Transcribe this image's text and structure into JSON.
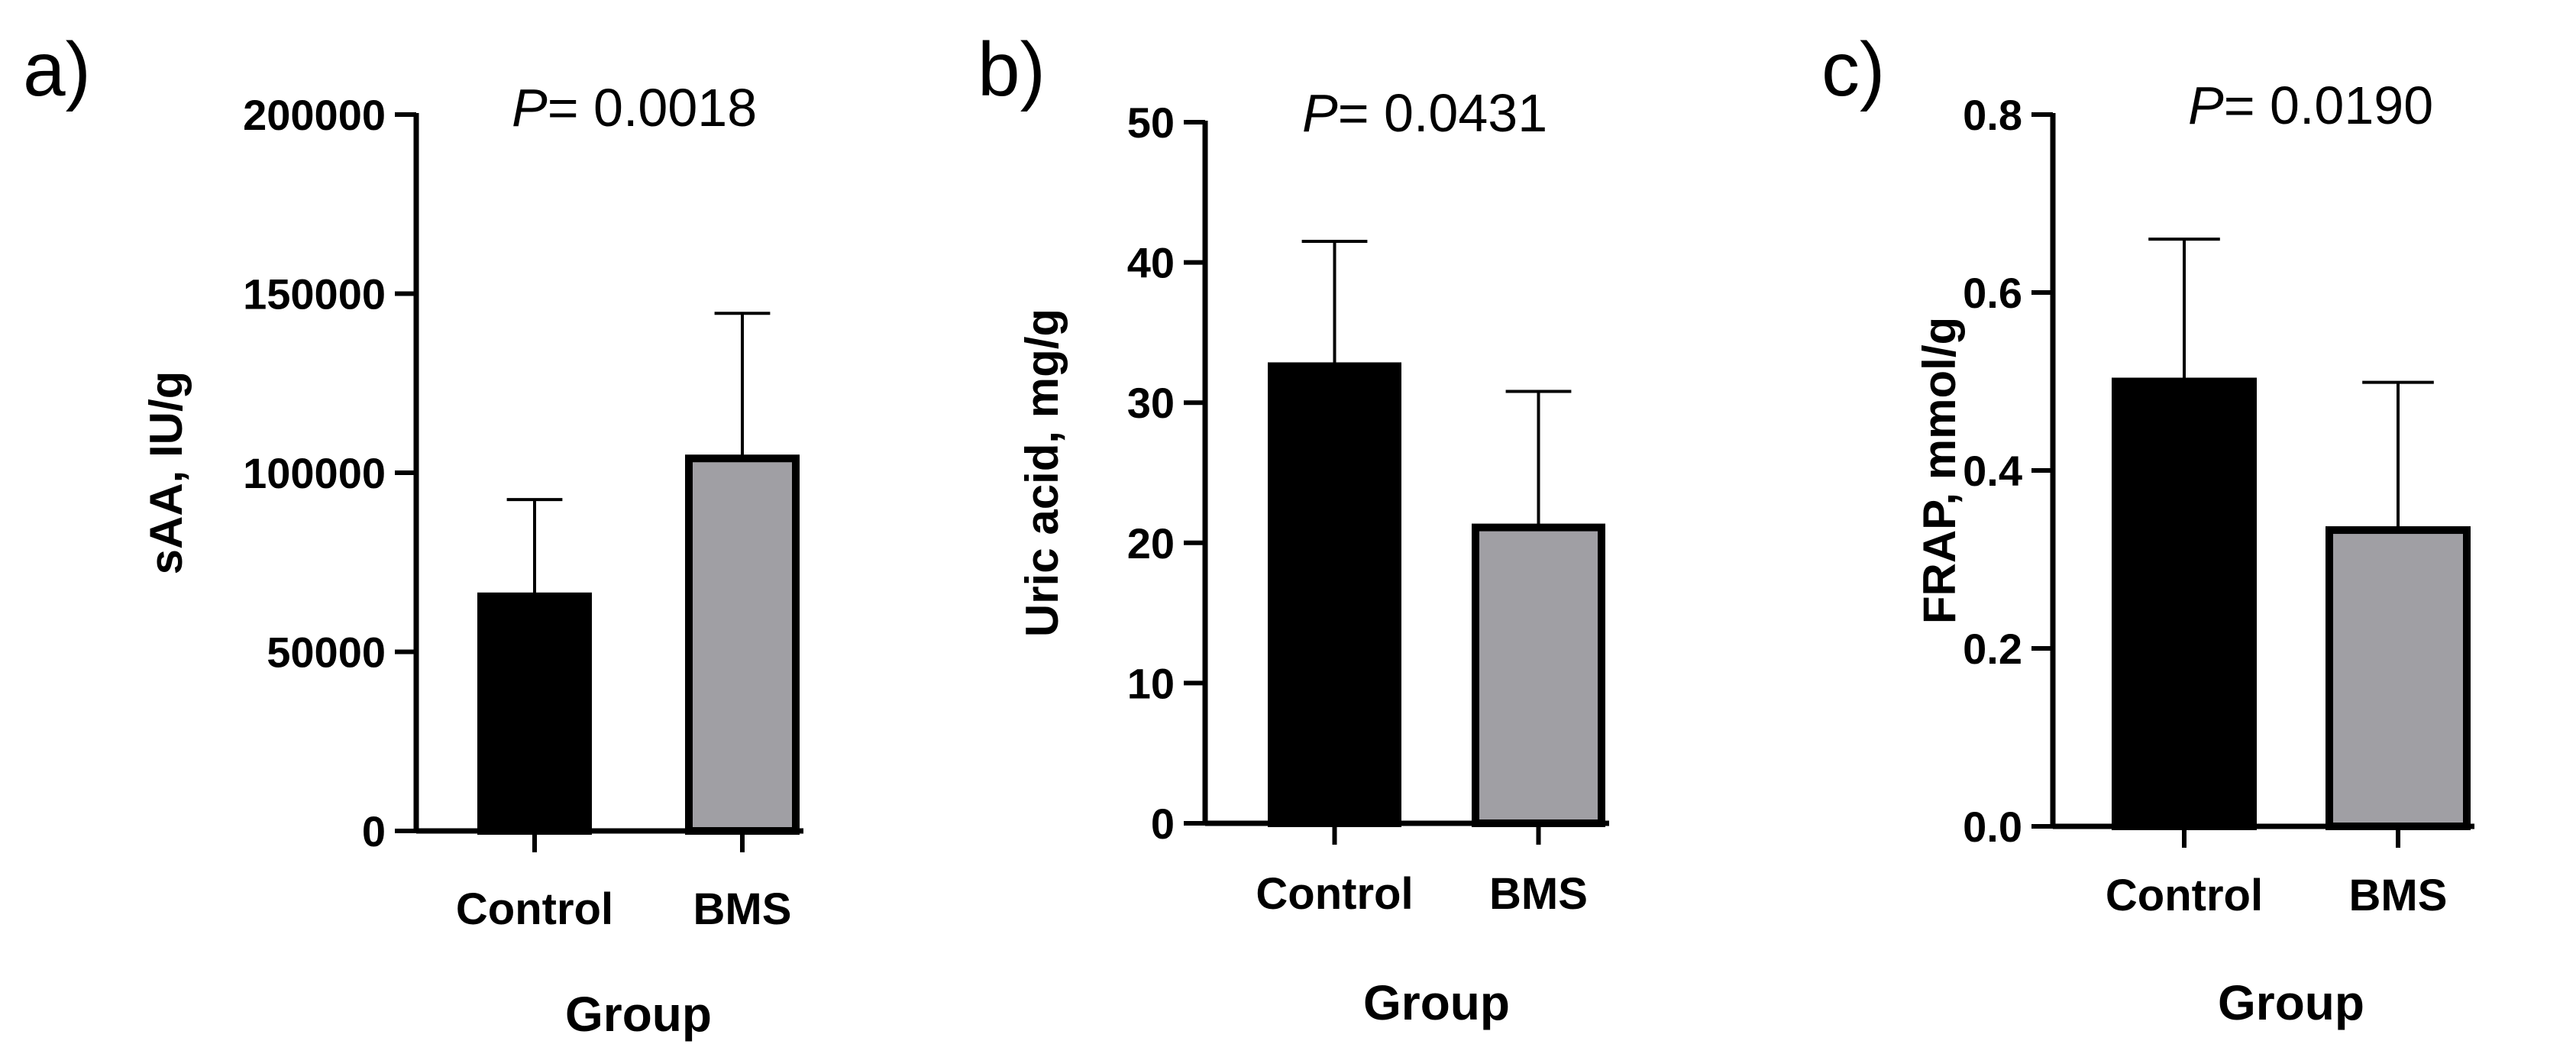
{
  "chart_data": [
    {
      "panel": "a)",
      "type": "bar",
      "p_label": "P",
      "p_value": "= 0.0018",
      "xlabel": "Group",
      "ylabel": "sAA, IU/g",
      "categories": [
        "Control",
        "BMS"
      ],
      "values": [
        65500,
        104000
      ],
      "errors": [
        27000,
        40500
      ],
      "colors": [
        "#000000",
        "#a09fa4"
      ],
      "ylim": [
        0,
        200000
      ],
      "yticks": [
        0,
        50000,
        100000,
        150000,
        200000
      ],
      "ytick_labels": [
        "0",
        "50000",
        "100000",
        "150000",
        "200000"
      ],
      "grid": false
    },
    {
      "panel": "b)",
      "type": "bar",
      "p_label": "P",
      "p_value": "= 0.0431",
      "xlabel": "Group",
      "ylabel": "Uric acid, mg/g",
      "categories": [
        "Control",
        "BMS"
      ],
      "values": [
        32.6,
        21.1
      ],
      "errors": [
        8.9,
        9.7
      ],
      "colors": [
        "#000000",
        "#a09fa4"
      ],
      "ylim": [
        0,
        50
      ],
      "yticks": [
        0,
        10,
        20,
        30,
        40,
        50
      ],
      "ytick_labels": [
        "0",
        "10",
        "20",
        "30",
        "40",
        "50"
      ],
      "grid": false
    },
    {
      "panel": "c)",
      "type": "bar",
      "p_label": "P",
      "p_value": "= 0.0190",
      "xlabel": "Group",
      "ylabel": "FRAP, mmol/g",
      "categories": [
        "Control",
        "BMS"
      ],
      "values": [
        0.5,
        0.333
      ],
      "errors": [
        0.16,
        0.166
      ],
      "colors": [
        "#000000",
        "#a09fa4"
      ],
      "ylim": [
        0,
        0.8
      ],
      "yticks": [
        0,
        0.2,
        0.4,
        0.6,
        0.8
      ],
      "ytick_labels": [
        "0.0",
        "0.2",
        "0.4",
        "0.6",
        "0.8"
      ],
      "grid": false
    }
  ]
}
